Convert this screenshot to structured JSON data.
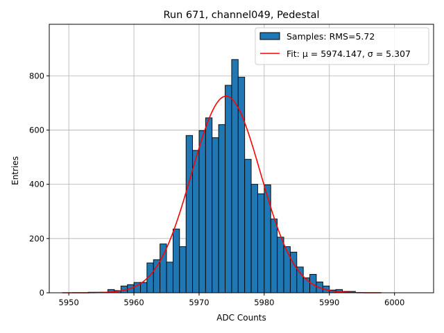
{
  "chart_data": {
    "type": "bar",
    "title": "Run 671, channel049, Pedestal",
    "xlabel": "ADC Counts",
    "ylabel": "Entries",
    "xlim": [
      5947,
      6006
    ],
    "ylim": [
      0,
      990
    ],
    "xticks": [
      5950,
      5960,
      5970,
      5980,
      5990,
      6000
    ],
    "yticks": [
      0,
      200,
      400,
      600,
      800
    ],
    "grid": true,
    "legend_position": "top-right",
    "bin_width": 1,
    "series": [
      {
        "name": "Samples: RMS=5.72",
        "kind": "histogram",
        "color": "#1f77b4",
        "edge_color": "#000000",
        "bins": [
          5953,
          5954,
          5955,
          5956,
          5957,
          5958,
          5959,
          5960,
          5961,
          5962,
          5963,
          5964,
          5965,
          5966,
          5967,
          5968,
          5969,
          5970,
          5971,
          5972,
          5973,
          5974,
          5975,
          5976,
          5977,
          5978,
          5979,
          5980,
          5981,
          5982,
          5983,
          5984,
          5985,
          5986,
          5987,
          5988,
          5989,
          5990,
          5991,
          5992,
          5993
        ],
        "values": [
          2,
          2,
          2,
          12,
          8,
          25,
          30,
          38,
          38,
          110,
          122,
          180,
          113,
          235,
          170,
          580,
          525,
          598,
          645,
          572,
          620,
          765,
          860,
          795,
          492,
          400,
          365,
          398,
          272,
          205,
          170,
          150,
          95,
          55,
          68,
          40,
          25,
          10,
          12,
          5,
          5
        ]
      },
      {
        "name": "Fit: μ = 5974.147, σ = 5.307",
        "kind": "gaussian-fit",
        "color": "#ff0000",
        "mu": 5974.147,
        "sigma": 5.307,
        "amplitude": 725,
        "x_range": [
          5949,
          5998
        ]
      }
    ]
  }
}
